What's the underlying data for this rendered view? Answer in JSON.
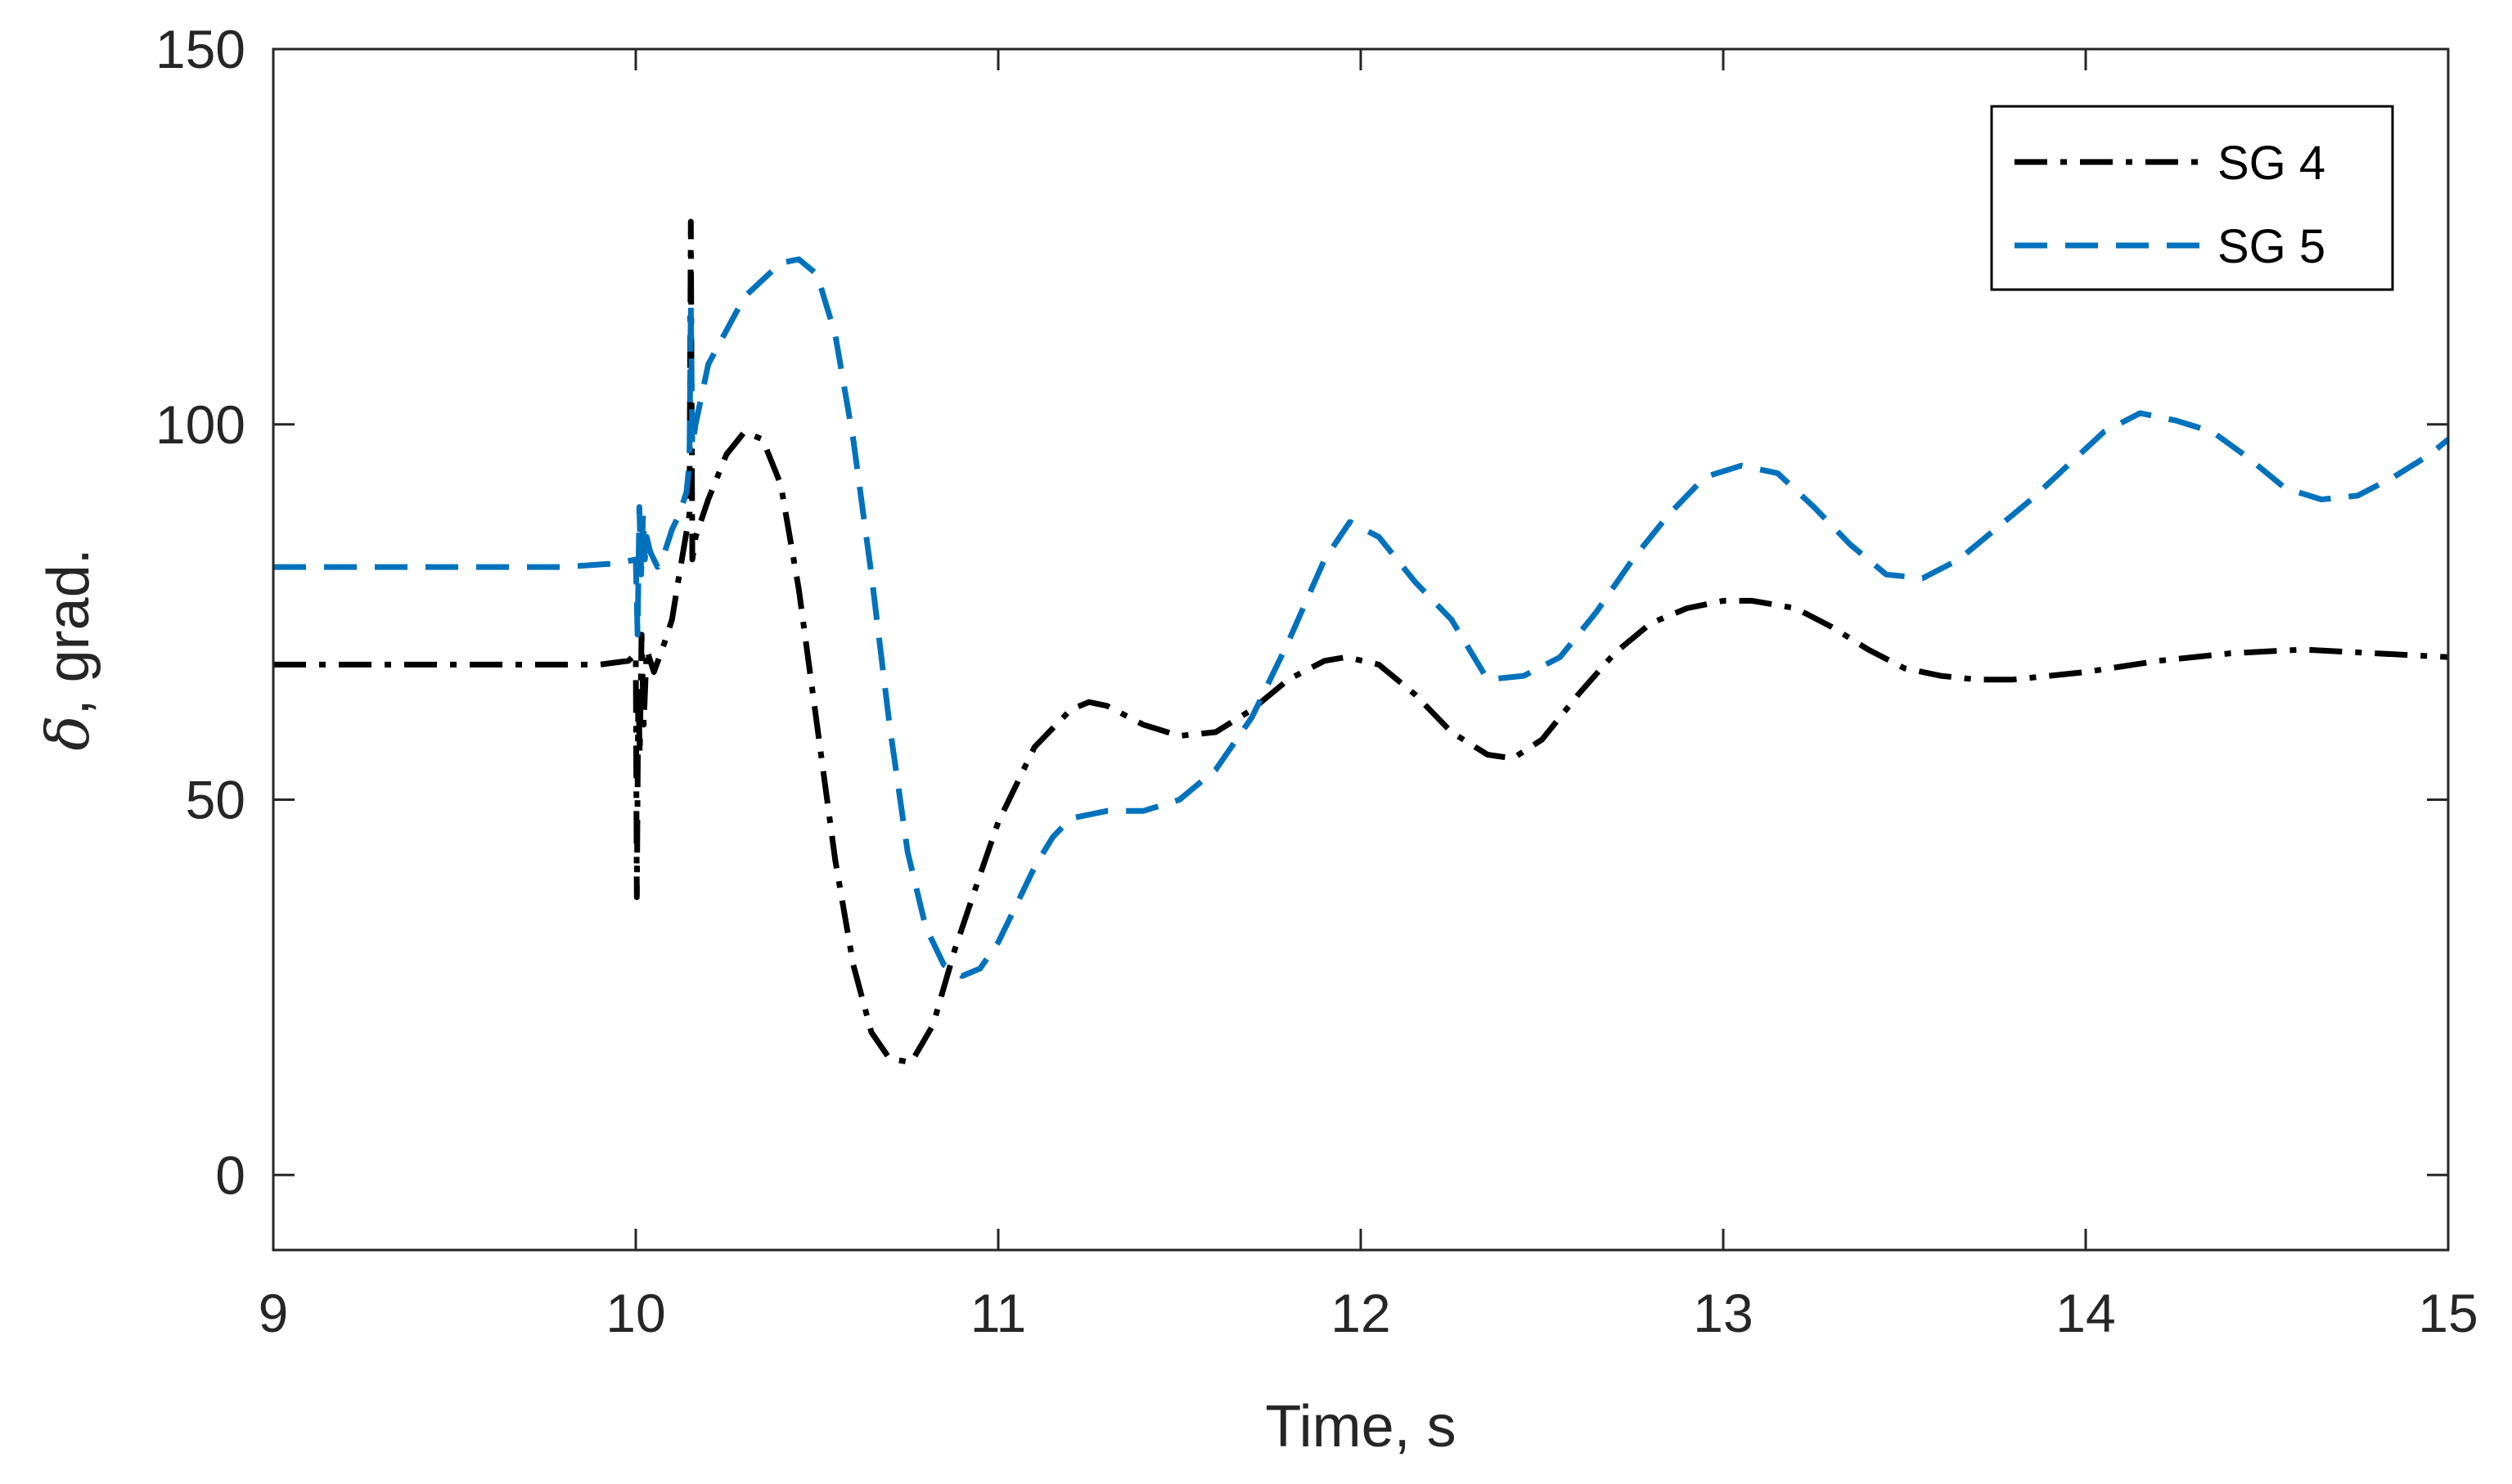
{
  "chart_data": {
    "type": "line",
    "title": "",
    "xlabel": "Time, s",
    "ylabel": {
      "symbol": "δ",
      "rest": ", grad."
    },
    "xlim": [
      9,
      15
    ],
    "ylim": [
      -10,
      150
    ],
    "xticks": [
      9,
      10,
      11,
      12,
      13,
      14,
      15
    ],
    "yticks": [
      0,
      50,
      100,
      150
    ],
    "grid": false,
    "legend_position": "top-right",
    "series": [
      {
        "name": "SG 4",
        "color": "#000000",
        "line_style": "dash-dot",
        "x": [
          9.0,
          9.9,
          9.98,
          10.0,
          10.003,
          10.007,
          10.011,
          10.016,
          10.022,
          10.03,
          10.05,
          10.08,
          10.1,
          10.12,
          10.148,
          10.152,
          10.156,
          10.165,
          10.2,
          10.25,
          10.3,
          10.35,
          10.4,
          10.45,
          10.5,
          10.55,
          10.6,
          10.65,
          10.7,
          10.76,
          10.82,
          10.88,
          10.95,
          11.0,
          11.1,
          11.2,
          11.25,
          11.3,
          11.4,
          11.5,
          11.6,
          11.7,
          11.8,
          11.9,
          11.96,
          12.05,
          12.15,
          12.25,
          12.35,
          12.42,
          12.5,
          12.6,
          12.7,
          12.8,
          12.9,
          13.0,
          13.08,
          13.2,
          13.3,
          13.4,
          13.5,
          13.6,
          13.7,
          13.8,
          14.0,
          14.2,
          14.4,
          14.6,
          14.8,
          15.0
        ],
        "y": [
          68,
          68,
          68.5,
          69.5,
          37,
          65,
          56,
          72,
          60,
          70,
          67,
          71,
          74,
          80,
          88,
          127,
          82,
          85,
          90,
          96,
          99,
          98,
          92,
          78,
          60,
          42,
          28,
          19,
          15.5,
          15,
          20,
          30,
          40,
          47,
          57,
          62,
          63,
          62.5,
          60,
          58.5,
          59,
          62,
          66,
          68.5,
          69,
          68,
          64,
          59,
          56,
          55.5,
          58,
          64,
          69.5,
          73.5,
          75.5,
          76.5,
          76.5,
          75.5,
          73,
          70,
          67.5,
          66.5,
          66,
          66,
          67,
          68.5,
          69.5,
          70,
          69.5,
          69
        ]
      },
      {
        "name": "SG 5",
        "color": "#0072BD",
        "line_style": "dashed",
        "x": [
          9.0,
          9.8,
          9.95,
          10.0,
          10.005,
          10.01,
          10.015,
          10.02,
          10.025,
          10.03,
          10.04,
          10.06,
          10.08,
          10.1,
          10.12,
          10.14,
          10.148,
          10.152,
          10.156,
          10.165,
          10.2,
          10.3,
          10.4,
          10.45,
          10.5,
          10.55,
          10.6,
          10.65,
          10.7,
          10.75,
          10.8,
          10.85,
          10.9,
          10.95,
          11.0,
          11.05,
          11.1,
          11.15,
          11.2,
          11.3,
          11.4,
          11.5,
          11.6,
          11.7,
          11.8,
          11.9,
          11.97,
          12.05,
          12.15,
          12.25,
          12.35,
          12.45,
          12.55,
          12.65,
          12.75,
          12.85,
          12.95,
          13.05,
          13.15,
          13.25,
          13.35,
          13.45,
          13.55,
          13.65,
          13.75,
          13.85,
          13.95,
          14.05,
          14.15,
          14.25,
          14.35,
          14.45,
          14.55,
          14.65,
          14.75,
          14.85,
          14.95,
          15.0
        ],
        "y": [
          81,
          81,
          81.5,
          82,
          72,
          89,
          80,
          88,
          82,
          85,
          83,
          81,
          83,
          86,
          88,
          91,
          95,
          116,
          97,
          100,
          108,
          117,
          121.5,
          122,
          120,
          112,
          98,
          80,
          60,
          43,
          33,
          28,
          26.5,
          27.5,
          31,
          36,
          41,
          45,
          47.5,
          48.5,
          48.5,
          50,
          54,
          61,
          71,
          82,
          87,
          85,
          79,
          74,
          66,
          66.5,
          69,
          75,
          82,
          88,
          93,
          94.5,
          93.5,
          89,
          84,
          80,
          79.5,
          82,
          86,
          90,
          94.5,
          99,
          101.5,
          100.5,
          99,
          95.5,
          91.5,
          90,
          90.5,
          93,
          96,
          98
        ]
      }
    ]
  }
}
